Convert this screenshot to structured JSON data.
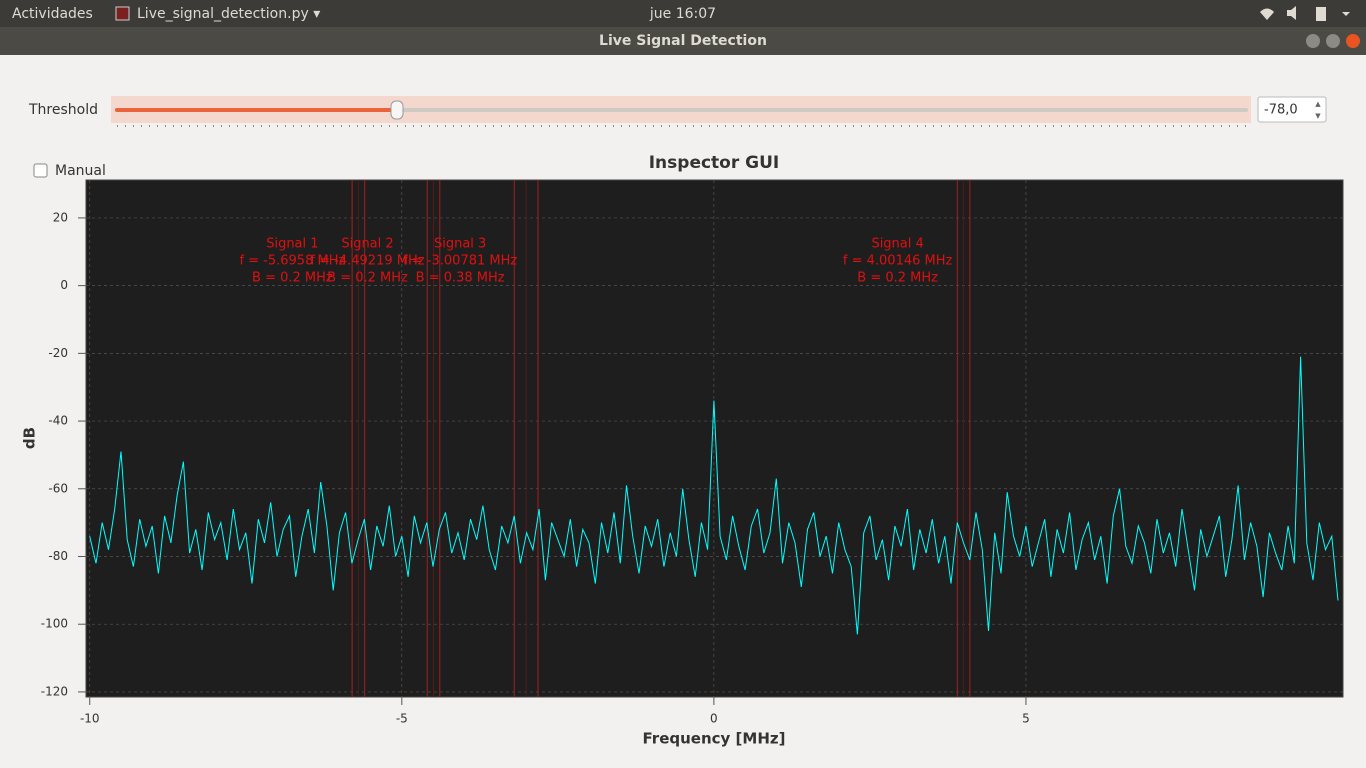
{
  "topbar": {
    "activities": "Actividades",
    "app": "Live_signal_detection.py ▾",
    "clock": "jue 16:07"
  },
  "window": {
    "title": "Live Signal Detection"
  },
  "controls": {
    "threshold_label": "Threshold",
    "threshold": {
      "value": -78,
      "label": "-78,0"
    },
    "manual_label": "Manual",
    "manual_checked": false
  },
  "chart_data": {
    "type": "line",
    "title": "Inspector GUI",
    "xlabel": "Frequency [MHz]",
    "ylabel": "dB",
    "color": "#00ffff",
    "xlim": [
      -10.06,
      10.08
    ],
    "ylim": [
      -121.5,
      31.2
    ],
    "xticks": [
      -10,
      -5,
      0,
      5
    ],
    "yticks": [
      20,
      0,
      -20,
      -40,
      -60,
      -80,
      -100,
      -120
    ],
    "grid": true,
    "signals": [
      {
        "name": "Signal 1",
        "f": -5.6958,
        "bandwidth": 0.2,
        "f_label": "f = -5.6958 MHz",
        "b_label": "B = 0.2 MHz"
      },
      {
        "name": "Signal 2",
        "f": -4.49219,
        "bandwidth": 0.2,
        "f_label": "f = -4.49219 MHz",
        "b_label": "B = 0.2 MHz"
      },
      {
        "name": "Signal 3",
        "f": -3.00781,
        "bandwidth": 0.38,
        "f_label": "f = -3.00781 MHz",
        "b_label": "B = 0.38 MHz"
      },
      {
        "name": "Signal 4",
        "f": 4.00146,
        "bandwidth": 0.2,
        "f_label": "f = 4.00146 MHz",
        "b_label": "B = 0.2 MHz"
      }
    ],
    "x": [
      -10,
      -9.9,
      -9.8,
      -9.7,
      -9.6,
      -9.5,
      -9.4,
      -9.3,
      -9.2,
      -9.1,
      -9,
      -8.9,
      -8.8,
      -8.7,
      -8.6,
      -8.5,
      -8.4,
      -8.3,
      -8.2,
      -8.1,
      -8,
      -7.9,
      -7.8,
      -7.7,
      -7.6,
      -7.5,
      -7.4,
      -7.3,
      -7.2,
      -7.1,
      -7,
      -6.9,
      -6.8,
      -6.7,
      -6.6,
      -6.5,
      -6.4,
      -6.3,
      -6.2,
      -6.1,
      -6,
      -5.9,
      -5.8,
      -5.7,
      -5.6,
      -5.5,
      -5.4,
      -5.3,
      -5.2,
      -5.1,
      -5,
      -4.9,
      -4.8,
      -4.7,
      -4.6,
      -4.5,
      -4.4,
      -4.3,
      -4.2,
      -4.1,
      -4,
      -3.9,
      -3.8,
      -3.7,
      -3.6,
      -3.5,
      -3.4,
      -3.3,
      -3.2,
      -3.1,
      -3,
      -2.9,
      -2.8,
      -2.7,
      -2.6,
      -2.5,
      -2.4,
      -2.3,
      -2.2,
      -2.1,
      -2,
      -1.9,
      -1.8,
      -1.7,
      -1.6,
      -1.5,
      -1.4,
      -1.3,
      -1.2,
      -1.1,
      -1,
      -0.9,
      -0.8,
      -0.7,
      -0.6,
      -0.5,
      -0.4,
      -0.3,
      -0.2,
      -0.1,
      0,
      0.1,
      0.2,
      0.3,
      0.4,
      0.5,
      0.6,
      0.7,
      0.8,
      0.9,
      1,
      1.1,
      1.2,
      1.3,
      1.4,
      1.5,
      1.6,
      1.7,
      1.8,
      1.9,
      2,
      2.1,
      2.2,
      2.3,
      2.4,
      2.5,
      2.6,
      2.7,
      2.8,
      2.9,
      3,
      3.1,
      3.2,
      3.3,
      3.4,
      3.5,
      3.6,
      3.7,
      3.8,
      3.9,
      4,
      4.1,
      4.2,
      4.3,
      4.4,
      4.5,
      4.6,
      4.7,
      4.8,
      4.9,
      5,
      5.1,
      5.2,
      5.3,
      5.4,
      5.5,
      5.6,
      5.7,
      5.8,
      5.9,
      6,
      6.1,
      6.2,
      6.3,
      6.4,
      6.5,
      6.6,
      6.7,
      6.8,
      6.9,
      7,
      7.1,
      7.2,
      7.3,
      7.4,
      7.5,
      7.6,
      7.7,
      7.8,
      7.9,
      8,
      8.1,
      8.2,
      8.3,
      8.4,
      8.5,
      8.6,
      8.7,
      8.8,
      8.9,
      9,
      9.1,
      9.2,
      9.3,
      9.4,
      9.5,
      9.6,
      9.7,
      9.8,
      9.9,
      10
    ],
    "values": [
      -74,
      -82,
      -70,
      -78,
      -66,
      -49,
      -75,
      -83,
      -69,
      -77,
      -71,
      -85,
      -68,
      -76,
      -62,
      -52,
      -79,
      -72,
      -84,
      -67,
      -75,
      -70,
      -81,
      -66,
      -78,
      -73,
      -88,
      -69,
      -76,
      -64,
      -80,
      -72,
      -68,
      -86,
      -74,
      -66,
      -79,
      -58,
      -71,
      -90,
      -73,
      -67,
      -82,
      -75,
      -69,
      -84,
      -71,
      -77,
      -65,
      -80,
      -74,
      -86,
      -68,
      -76,
      -70,
      -83,
      -72,
      -67,
      -79,
      -73,
      -81,
      -69,
      -75,
      -65,
      -78,
      -84,
      -71,
      -76,
      -68,
      -82,
      -73,
      -78,
      -66,
      -87,
      -70,
      -75,
      -80,
      -69,
      -83,
      -72,
      -76,
      -88,
      -70,
      -79,
      -67,
      -82,
      -59,
      -74,
      -85,
      -71,
      -77,
      -69,
      -83,
      -73,
      -80,
      -60,
      -75,
      -86,
      -70,
      -78,
      -34,
      -74,
      -81,
      -68,
      -77,
      -84,
      -71,
      -66,
      -79,
      -73,
      -57,
      -82,
      -70,
      -76,
      -89,
      -72,
      -67,
      -80,
      -74,
      -85,
      -70,
      -78,
      -83,
      -103,
      -73,
      -68,
      -81,
      -75,
      -87,
      -71,
      -77,
      -66,
      -84,
      -72,
      -79,
      -69,
      -82,
      -74,
      -88,
      -70,
      -76,
      -81,
      -67,
      -78,
      -102,
      -73,
      -85,
      -61,
      -74,
      -80,
      -71,
      -83,
      -76,
      -69,
      -86,
      -72,
      -79,
      -67,
      -84,
      -75,
      -70,
      -81,
      -74,
      -88,
      -68,
      -60,
      -77,
      -82,
      -71,
      -76,
      -85,
      -69,
      -79,
      -73,
      -83,
      -66,
      -78,
      -90,
      -72,
      -80,
      -74,
      -68,
      -86,
      -75,
      -59,
      -81,
      -70,
      -77,
      -92,
      -73,
      -79,
      -84,
      -71,
      -82,
      -21,
      -76,
      -87,
      -70,
      -78,
      -74,
      -93
    ]
  }
}
